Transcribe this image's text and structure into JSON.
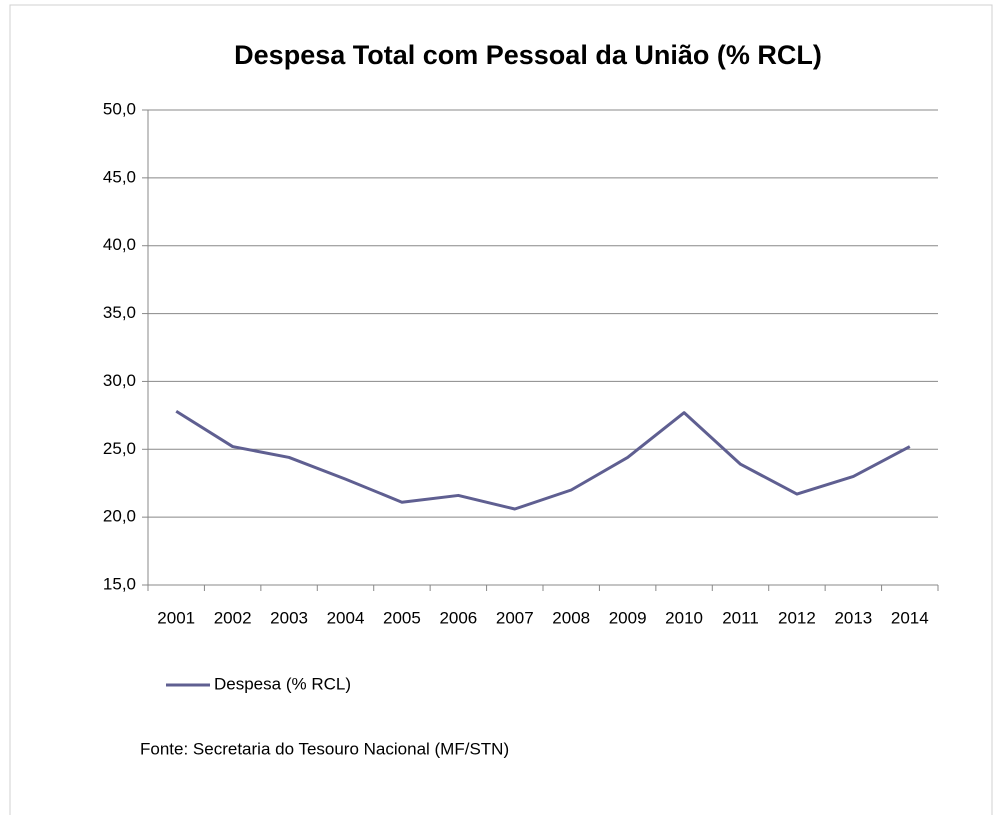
{
  "chart_data": {
    "type": "line",
    "title": "Despesa Total com Pessoal da União  (% RCL)",
    "categories": [
      "2001",
      "2002",
      "2003",
      "2004",
      "2005",
      "2006",
      "2007",
      "2008",
      "2009",
      "2010",
      "2011",
      "2012",
      "2013",
      "2014"
    ],
    "series": [
      {
        "name": "Despesa (% RCL)",
        "color": "#5f5f91",
        "values": [
          27.8,
          25.2,
          24.4,
          22.8,
          21.1,
          21.6,
          20.6,
          22.0,
          24.4,
          27.7,
          23.9,
          21.7,
          23.0,
          25.2
        ]
      }
    ],
    "ylim": [
      15,
      50
    ],
    "yticks": [
      {
        "value": 15,
        "label": "15,0"
      },
      {
        "value": 20,
        "label": "20,0"
      },
      {
        "value": 25,
        "label": "25,0"
      },
      {
        "value": 30,
        "label": "30,0"
      },
      {
        "value": 35,
        "label": "35,0"
      },
      {
        "value": 40,
        "label": "40,0"
      },
      {
        "value": 45,
        "label": "45,0"
      },
      {
        "value": 50,
        "label": "50,0"
      }
    ],
    "grid": true,
    "legend": "bottom",
    "source": "Fonte: Secretaria do Tesouro Nacional (MF/STN)"
  }
}
